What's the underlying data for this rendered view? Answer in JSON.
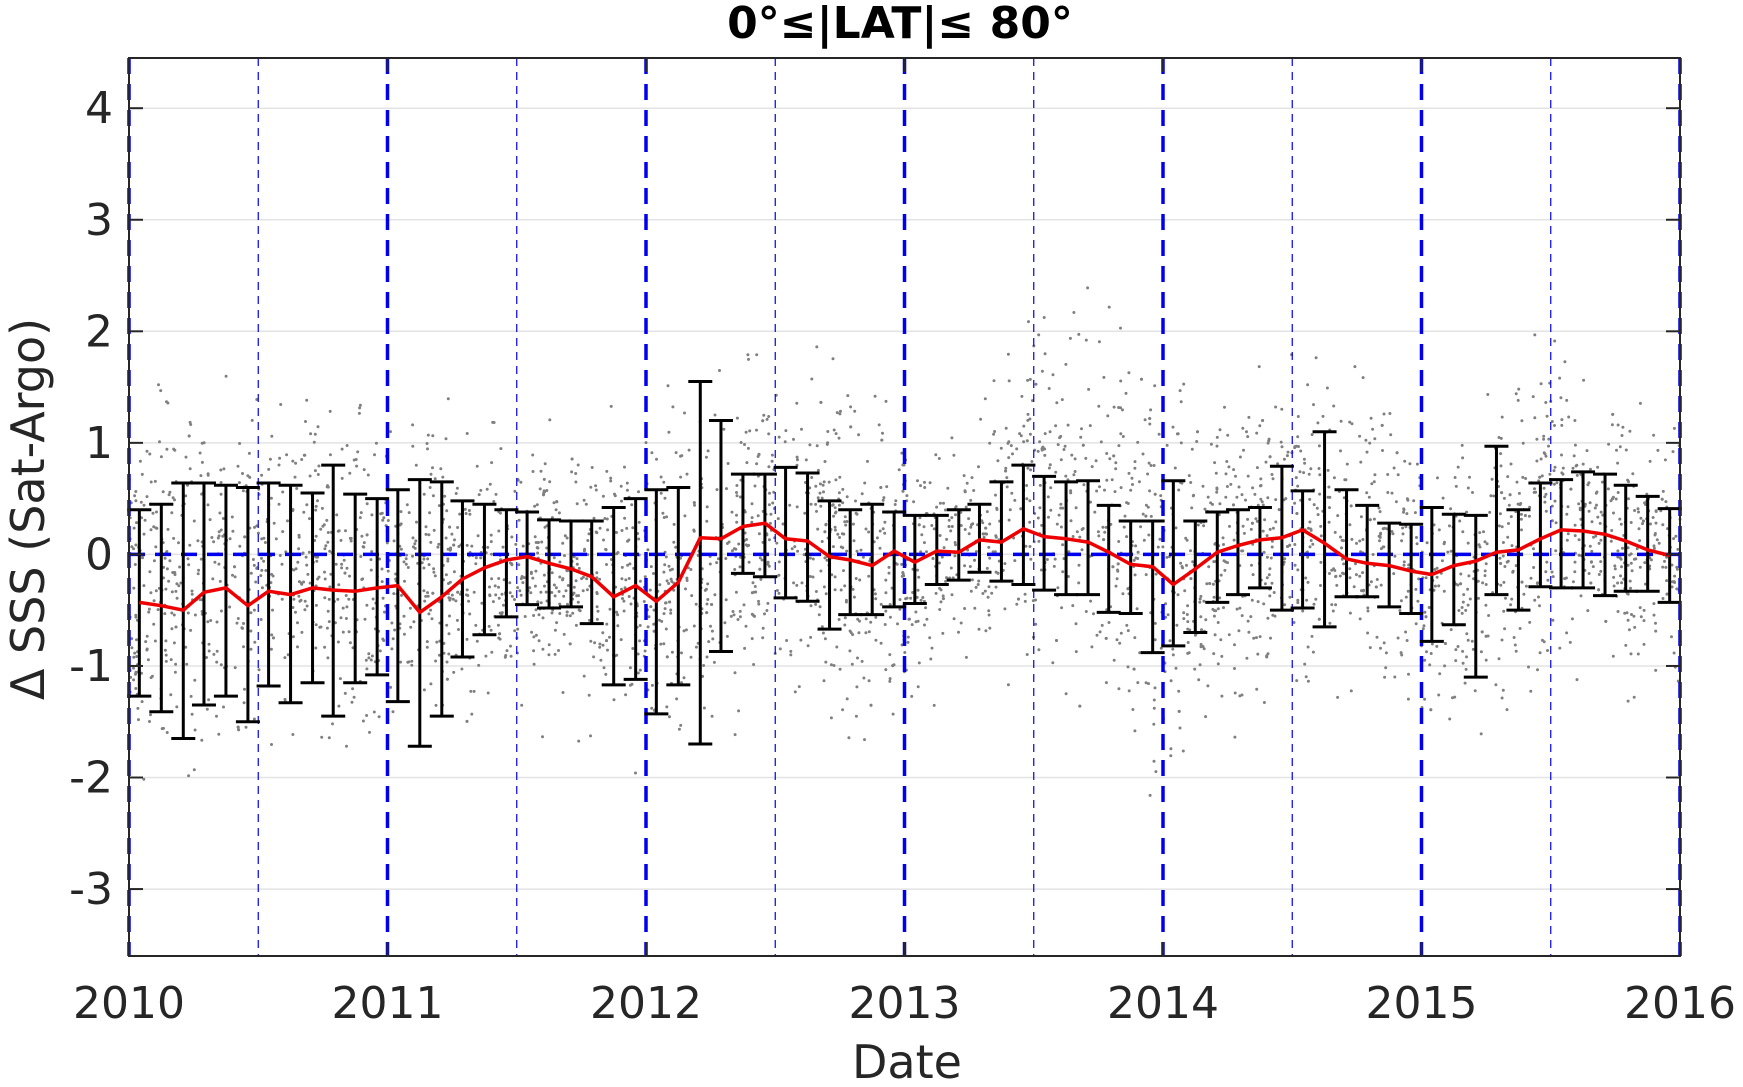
{
  "chart_data": {
    "type": "scatter",
    "title": "0°≤|LAT|≤ 80°",
    "xlabel": "Date",
    "ylabel": "Δ SSS (Sat-Argo)",
    "xlim": [
      2010,
      2016
    ],
    "ylim": [
      -3.6,
      4.45
    ],
    "x_ticks": [
      "2010",
      "2011",
      "2012",
      "2013",
      "2014",
      "2015",
      "2016"
    ],
    "y_ticks": [
      "-3",
      "-2",
      "-1",
      "0",
      "1",
      "2",
      "3",
      "4"
    ],
    "grid": true,
    "reference_line": {
      "y": 0,
      "style": "dashed",
      "color": "#0000ee"
    },
    "vertical_lines": {
      "year_boundaries": [
        2010,
        2011,
        2012,
        2013,
        2014,
        2015,
        2016
      ],
      "mid_years": [
        2010.5,
        2011.5,
        2012.5,
        2013.5,
        2014.5,
        2015.5
      ],
      "color": "#0000ee",
      "style": "dashed"
    },
    "colors": {
      "scatter": "#808080",
      "mean_line": "#ee0000",
      "error_bars": "#000000",
      "reference": "#0000ee"
    },
    "series": [
      {
        "kind": "mean_with_errorbars",
        "x": [
          2010.04,
          2010.125,
          2010.21,
          2010.29,
          2010.375,
          2010.46,
          2010.54,
          2010.625,
          2010.71,
          2010.79,
          2010.875,
          2010.96,
          2011.04,
          2011.125,
          2011.21,
          2011.29,
          2011.375,
          2011.46,
          2011.54,
          2011.625,
          2011.71,
          2011.79,
          2011.875,
          2011.96,
          2012.04,
          2012.125,
          2012.21,
          2012.29,
          2012.375,
          2012.46,
          2012.54,
          2012.625,
          2012.71,
          2012.79,
          2012.875,
          2012.96,
          2013.04,
          2013.125,
          2013.21,
          2013.29,
          2013.375,
          2013.46,
          2013.54,
          2013.625,
          2013.71,
          2013.79,
          2013.875,
          2013.96,
          2014.04,
          2014.125,
          2014.21,
          2014.29,
          2014.375,
          2014.46,
          2014.54,
          2014.625,
          2014.71,
          2014.79,
          2014.875,
          2014.96,
          2015.04,
          2015.125,
          2015.21,
          2015.29,
          2015.375,
          2015.46,
          2015.54,
          2015.625,
          2015.71,
          2015.79,
          2015.875,
          2015.96
        ],
        "mean": [
          -0.43,
          -0.46,
          -0.5,
          -0.34,
          -0.3,
          -0.46,
          -0.33,
          -0.36,
          -0.3,
          -0.32,
          -0.33,
          -0.3,
          -0.28,
          -0.52,
          -0.38,
          -0.22,
          -0.12,
          -0.05,
          -0.02,
          -0.08,
          -0.13,
          -0.2,
          -0.38,
          -0.28,
          -0.42,
          -0.25,
          0.15,
          0.14,
          0.25,
          0.28,
          0.14,
          0.12,
          -0.02,
          -0.05,
          -0.1,
          0.03,
          -0.07,
          0.03,
          0.02,
          0.13,
          0.11,
          0.23,
          0.16,
          0.14,
          0.11,
          0.02,
          -0.09,
          -0.11,
          -0.27,
          -0.13,
          0.02,
          0.08,
          0.13,
          0.15,
          0.22,
          0.1,
          -0.04,
          -0.08,
          -0.1,
          -0.15,
          -0.18,
          -0.1,
          -0.06,
          0.02,
          0.04,
          0.14,
          0.22,
          0.21,
          0.18,
          0.12,
          0.04,
          -0.01
        ],
        "upper": [
          0.4,
          0.45,
          0.64,
          0.64,
          0.62,
          0.6,
          0.64,
          0.62,
          0.55,
          0.8,
          0.54,
          0.5,
          0.58,
          0.67,
          0.65,
          0.48,
          0.45,
          0.4,
          0.38,
          0.31,
          0.3,
          0.3,
          0.42,
          0.5,
          0.58,
          0.6,
          1.55,
          1.2,
          0.72,
          0.72,
          0.78,
          0.73,
          0.48,
          0.4,
          0.45,
          0.38,
          0.35,
          0.35,
          0.4,
          0.45,
          0.65,
          0.8,
          0.7,
          0.65,
          0.66,
          0.44,
          0.3,
          0.3,
          0.66,
          0.3,
          0.38,
          0.4,
          0.42,
          0.79,
          0.57,
          1.1,
          0.58,
          0.44,
          0.28,
          0.27,
          0.42,
          0.36,
          0.35,
          0.97,
          0.4,
          0.64,
          0.67,
          0.74,
          0.72,
          0.62,
          0.52,
          0.41
        ],
        "lower": [
          -1.27,
          -1.41,
          -1.65,
          -1.35,
          -1.27,
          -1.5,
          -1.18,
          -1.33,
          -1.15,
          -1.45,
          -1.15,
          -1.08,
          -1.32,
          -1.72,
          -1.45,
          -0.92,
          -0.72,
          -0.56,
          -0.45,
          -0.48,
          -0.47,
          -0.62,
          -1.17,
          -1.12,
          -1.43,
          -1.17,
          -1.7,
          -0.87,
          -0.17,
          -0.2,
          -0.39,
          -0.42,
          -0.67,
          -0.54,
          -0.54,
          -0.47,
          -0.44,
          -0.27,
          -0.23,
          -0.16,
          -0.24,
          -0.27,
          -0.32,
          -0.36,
          -0.36,
          -0.52,
          -0.53,
          -0.88,
          -0.82,
          -0.7,
          -0.43,
          -0.36,
          -0.3,
          -0.5,
          -0.48,
          -0.65,
          -0.38,
          -0.38,
          -0.47,
          -0.53,
          -0.78,
          -0.63,
          -1.1,
          -0.36,
          -0.5,
          -0.29,
          -0.3,
          -0.3,
          -0.37,
          -0.33,
          -0.33,
          -0.43
        ]
      },
      {
        "kind": "scatter_envelope",
        "x": [
          2010.0,
          2010.25,
          2010.5,
          2010.75,
          2011.0,
          2011.25,
          2011.5,
          2011.75,
          2012.0,
          2012.25,
          2012.5,
          2012.75,
          2013.0,
          2013.25,
          2013.5,
          2013.75,
          2014.0,
          2014.25,
          2014.5,
          2014.75,
          2015.0,
          2015.25,
          2015.5,
          2015.75,
          2016.0
        ],
        "upper": [
          0.7,
          0.8,
          0.8,
          0.8,
          0.7,
          0.7,
          0.5,
          0.5,
          0.6,
          0.9,
          1.2,
          1.0,
          0.5,
          0.6,
          1.6,
          1.7,
          0.9,
          0.9,
          1.2,
          1.2,
          0.5,
          0.7,
          1.5,
          0.9,
          0.6
        ],
        "lower": [
          -1.2,
          -1.2,
          -1.1,
          -1.0,
          -1.0,
          -1.0,
          -0.8,
          -0.9,
          -1.3,
          -1.1,
          -0.5,
          -0.9,
          -0.9,
          -0.5,
          -0.5,
          -0.6,
          -1.3,
          -1.0,
          -0.6,
          -0.6,
          -1.1,
          -0.8,
          -0.4,
          -0.5,
          -0.7
        ]
      }
    ]
  }
}
